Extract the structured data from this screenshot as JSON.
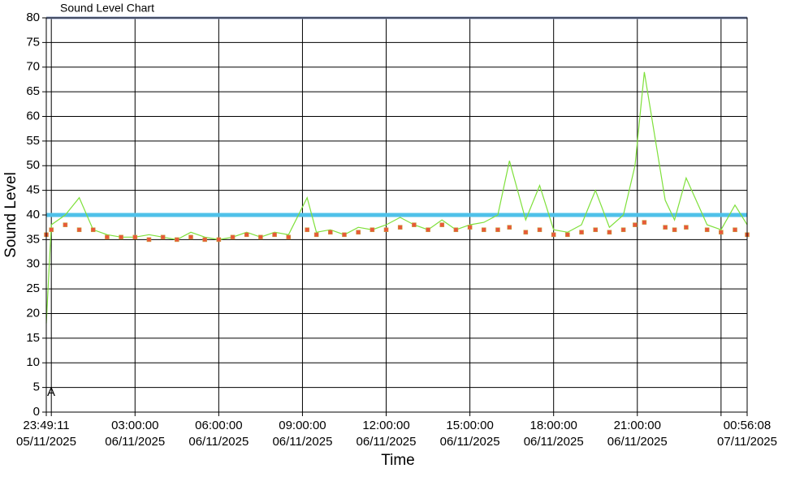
{
  "chart_data": {
    "type": "line",
    "title": "Sound Level Chart",
    "x_label": "Time",
    "y_label": "Sound Level",
    "annotation": "A",
    "xlim": [
      "2025-11-05T23:49:11",
      "2025-11-07T00:56:08"
    ],
    "xticks": [
      {
        "value": "2025-11-05T23:49:11",
        "label": [
          "23:49:11",
          "05/11/2025"
        ]
      },
      {
        "value": "2025-11-06T00:00:00",
        "label": null
      },
      {
        "value": "2025-11-06T03:00:00",
        "label": [
          "03:00:00",
          "06/11/2025"
        ]
      },
      {
        "value": "2025-11-06T06:00:00",
        "label": [
          "06:00:00",
          "06/11/2025"
        ]
      },
      {
        "value": "2025-11-06T09:00:00",
        "label": [
          "09:00:00",
          "06/11/2025"
        ]
      },
      {
        "value": "2025-11-06T12:00:00",
        "label": [
          "12:00:00",
          "06/11/2025"
        ]
      },
      {
        "value": "2025-11-06T15:00:00",
        "label": [
          "15:00:00",
          "06/11/2025"
        ]
      },
      {
        "value": "2025-11-06T18:00:00",
        "label": [
          "18:00:00",
          "06/11/2025"
        ]
      },
      {
        "value": "2025-11-06T21:00:00",
        "label": [
          "21:00:00",
          "06/11/2025"
        ]
      },
      {
        "value": "2025-11-07T00:00:00",
        "label": null
      },
      {
        "value": "2025-11-07T00:56:08",
        "label": [
          "00:56:08",
          "07/11/2025"
        ]
      }
    ],
    "ylim": [
      0,
      80
    ],
    "yticks": [
      0,
      5,
      10,
      15,
      20,
      25,
      30,
      35,
      40,
      45,
      50,
      55,
      60,
      65,
      70,
      75,
      80
    ],
    "grid": true,
    "reference_lines": [
      {
        "value": 40,
        "color": "#4fc1e9"
      },
      {
        "value": 80,
        "color": "#8c9dc7"
      }
    ],
    "x": [
      "2025-11-05T23:49:11",
      "2025-11-06T00:00:00",
      "2025-11-06T00:30:00",
      "2025-11-06T01:00:00",
      "2025-11-06T01:30:00",
      "2025-11-06T02:00:00",
      "2025-11-06T02:30:00",
      "2025-11-06T03:00:00",
      "2025-11-06T03:30:00",
      "2025-11-06T04:00:00",
      "2025-11-06T04:30:00",
      "2025-11-06T05:00:00",
      "2025-11-06T05:30:00",
      "2025-11-06T06:00:00",
      "2025-11-06T06:30:00",
      "2025-11-06T07:00:00",
      "2025-11-06T07:30:00",
      "2025-11-06T08:00:00",
      "2025-11-06T08:30:00",
      "2025-11-06T09:10:00",
      "2025-11-06T09:30:00",
      "2025-11-06T10:00:00",
      "2025-11-06T10:30:00",
      "2025-11-06T11:00:00",
      "2025-11-06T11:30:00",
      "2025-11-06T12:00:00",
      "2025-11-06T12:30:00",
      "2025-11-06T13:00:00",
      "2025-11-06T13:30:00",
      "2025-11-06T14:00:00",
      "2025-11-06T14:30:00",
      "2025-11-06T15:00:00",
      "2025-11-06T15:30:00",
      "2025-11-06T16:00:00",
      "2025-11-06T16:25:00",
      "2025-11-06T17:00:00",
      "2025-11-06T17:30:00",
      "2025-11-06T18:00:00",
      "2025-11-06T18:30:00",
      "2025-11-06T19:00:00",
      "2025-11-06T19:30:00",
      "2025-11-06T20:00:00",
      "2025-11-06T20:30:00",
      "2025-11-06T20:55:00",
      "2025-11-06T21:15:00",
      "2025-11-06T22:00:00",
      "2025-11-06T22:20:00",
      "2025-11-06T22:45:00",
      "2025-11-06T23:30:00",
      "2025-11-07T00:00:00",
      "2025-11-07T00:30:00",
      "2025-11-07T00:56:08"
    ],
    "series": [
      {
        "color": "#7ee03a",
        "marker": "none",
        "values": [
          18,
          38,
          40,
          43.5,
          37,
          36,
          35.5,
          35.5,
          36,
          35.5,
          35,
          36.5,
          35.5,
          35,
          35.5,
          36.5,
          35.5,
          36.5,
          36,
          43.5,
          36.5,
          37,
          36,
          37.5,
          37,
          38,
          39.5,
          38,
          37,
          39,
          37,
          38,
          38.5,
          40,
          51,
          39,
          46,
          37,
          36.5,
          38,
          45,
          37.5,
          40,
          50,
          69,
          43,
          39,
          47.5,
          38,
          37,
          42,
          38
        ]
      },
      {
        "color": "#e8583a",
        "marker": "square",
        "values": [
          36,
          37,
          38,
          37,
          37,
          35.5,
          35.5,
          35.5,
          35,
          35.5,
          35,
          35.5,
          35,
          35,
          35.5,
          36,
          35.5,
          36,
          35.5,
          37,
          36,
          36.5,
          36,
          36.5,
          37,
          37,
          37.5,
          38,
          37,
          38,
          37,
          37.5,
          37,
          37,
          37.5,
          36.5,
          37,
          36,
          36,
          36.5,
          37,
          36.5,
          37,
          38,
          38.5,
          37.5,
          37,
          37.5,
          37,
          36.5,
          37,
          36
        ]
      }
    ]
  }
}
